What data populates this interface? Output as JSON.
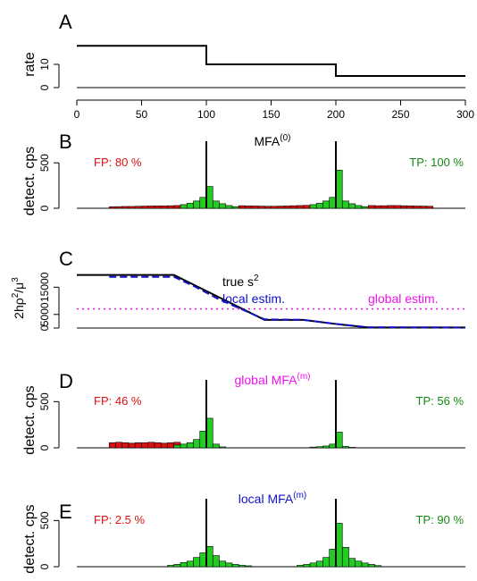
{
  "colors": {
    "fp": "#dd1111",
    "tp": "#22cc22",
    "tp_text": "#118811",
    "local": "#1111cc",
    "global": "#ee11ee",
    "line": "#000000"
  },
  "chart_data": [
    {
      "type": "line",
      "panel_letter": "A",
      "ylabel": "rate",
      "xlim": [
        0,
        300
      ],
      "ylim": [
        0,
        20
      ],
      "x_ticks": [
        "0",
        "50",
        "100",
        "150",
        "200",
        "250",
        "300"
      ],
      "y_ticks": [
        "0",
        "10"
      ],
      "series": [
        {
          "x": [
            0,
            100,
            100,
            200,
            200,
            300
          ],
          "y": [
            18,
            18,
            10,
            10,
            5,
            5
          ]
        }
      ]
    },
    {
      "type": "bar",
      "panel_letter": "B",
      "ylabel": "detect. cps",
      "y_ticks": [
        "0",
        "500"
      ],
      "ylim": [
        0,
        600
      ],
      "xlim": [
        0,
        300
      ],
      "bin_width": 5,
      "title_base": "MFA",
      "title_sup": "(0)",
      "fp_text": "FP: 80 %",
      "tp_text": "TP: 100 %",
      "vlines": [
        100,
        200
      ],
      "fp_bars": [
        [
          25,
          30,
          35,
          40,
          45,
          50,
          55,
          60,
          65,
          70,
          75,
          125,
          130,
          135,
          140,
          145,
          150,
          155,
          160,
          165,
          170,
          175,
          225,
          230,
          235,
          240,
          245,
          250,
          255,
          260,
          265,
          270
        ],
        [
          16,
          18,
          20,
          20,
          22,
          24,
          25,
          26,
          26,
          28,
          30,
          28,
          26,
          25,
          24,
          22,
          22,
          24,
          26,
          28,
          30,
          32,
          30,
          28,
          28,
          30,
          30,
          28,
          26,
          25,
          24,
          22
        ]
      ],
      "tp_bars": [
        [
          80,
          85,
          90,
          95,
          100,
          105,
          110,
          115,
          120,
          180,
          185,
          190,
          195,
          200,
          205,
          210,
          215,
          220
        ],
        [
          40,
          55,
          80,
          120,
          240,
          80,
          50,
          30,
          18,
          40,
          55,
          80,
          120,
          420,
          80,
          50,
          30,
          18
        ]
      ]
    },
    {
      "type": "line",
      "panel_letter": "C",
      "ylabel_base": "2hρ",
      "ylabel_sup1": "2",
      "ylabel_mid": "/μ",
      "ylabel_sup2": "3",
      "y_ticks": [
        "0",
        "5000",
        "15000"
      ],
      "ylim": [
        0,
        22000
      ],
      "xlim": [
        0,
        300
      ],
      "true_label_base": "true s",
      "true_label_sup": "2",
      "local_label": "local estim.",
      "global_label": "global estim.",
      "series": [
        {
          "name": "true s2",
          "x": [
            0,
            75,
            145,
            175,
            200,
            225,
            300
          ],
          "y": [
            19500,
            19500,
            3000,
            3000,
            1500,
            200,
            200
          ]
        },
        {
          "name": "local estim.",
          "x": [
            25,
            75,
            90,
            110,
            145,
            175,
            200,
            225,
            300
          ],
          "y": [
            18800,
            18800,
            15500,
            10500,
            3200,
            3000,
            1500,
            300,
            200
          ]
        },
        {
          "name": "global estim.",
          "x": [
            0,
            300
          ],
          "y": [
            7000,
            7000
          ]
        }
      ]
    },
    {
      "type": "bar",
      "panel_letter": "D",
      "ylabel": "detect. cps",
      "y_ticks": [
        "0",
        "500"
      ],
      "ylim": [
        0,
        600
      ],
      "xlim": [
        0,
        300
      ],
      "bin_width": 5,
      "title_base": "global MFA",
      "title_sup": "(m)",
      "fp_text": "FP: 46 %",
      "tp_text": "TP: 56 %",
      "vlines": [
        100,
        200
      ],
      "fp_bars": [
        [
          25,
          30,
          35,
          40,
          45,
          50,
          55,
          60,
          65,
          70,
          75
        ],
        [
          55,
          60,
          55,
          50,
          55,
          55,
          60,
          55,
          50,
          55,
          60
        ]
      ],
      "tp_bars": [
        [
          75,
          80,
          85,
          90,
          95,
          100,
          105,
          110,
          180,
          185,
          190,
          195,
          200,
          205,
          210
        ],
        [
          30,
          40,
          55,
          90,
          180,
          320,
          40,
          10,
          8,
          12,
          20,
          40,
          170,
          15,
          5
        ]
      ]
    },
    {
      "type": "bar",
      "panel_letter": "E",
      "ylabel": "detect. cps",
      "y_ticks": [
        "0",
        "500"
      ],
      "ylim": [
        0,
        600
      ],
      "xlim": [
        0,
        300
      ],
      "bin_width": 5,
      "title_base": "local MFA",
      "title_sup": "(m)",
      "fp_text": "FP: 2.5 %",
      "tp_text": "TP: 90 %",
      "vlines": [
        100,
        200
      ],
      "fp_bars": [
        [],
        []
      ],
      "tp_bars": [
        [
          70,
          75,
          80,
          85,
          90,
          95,
          100,
          105,
          110,
          115,
          120,
          125,
          130,
          170,
          175,
          180,
          185,
          190,
          195,
          200,
          205,
          210,
          215,
          220,
          225,
          230
        ],
        [
          15,
          25,
          45,
          60,
          100,
          150,
          220,
          120,
          60,
          40,
          25,
          15,
          10,
          15,
          25,
          40,
          60,
          100,
          190,
          470,
          210,
          90,
          60,
          40,
          25,
          12
        ]
      ]
    }
  ]
}
